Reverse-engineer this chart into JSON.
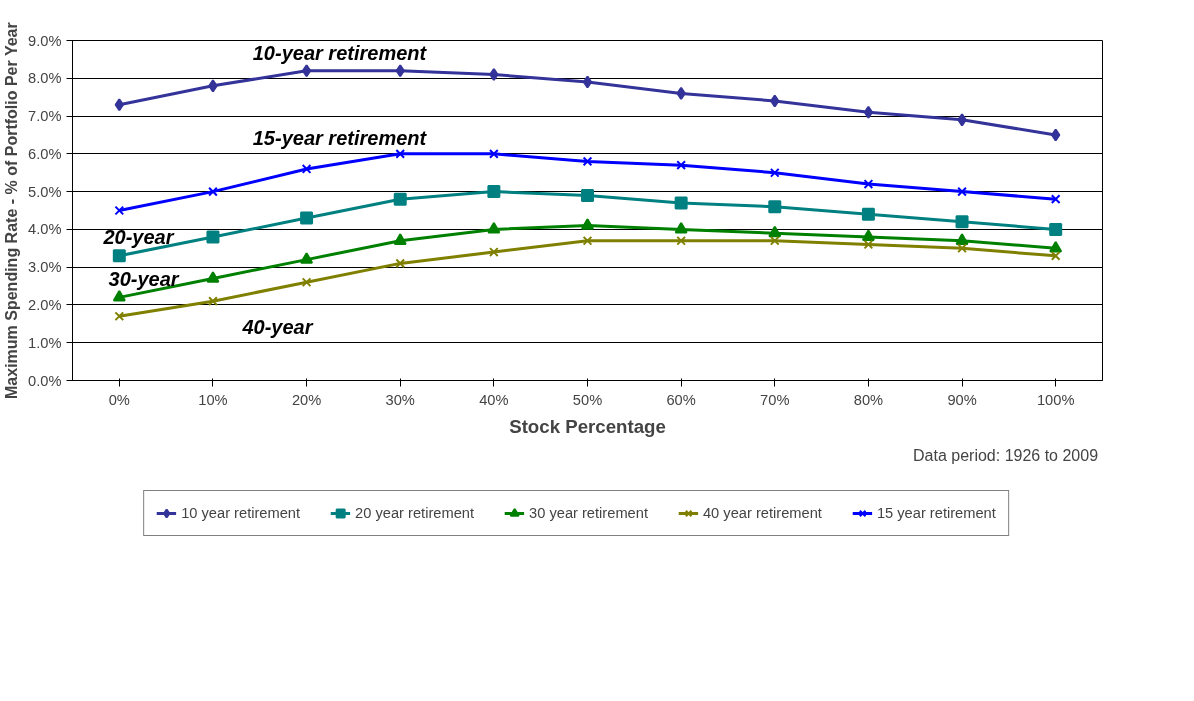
{
  "chart_data": {
    "type": "line",
    "xlabel": "Stock Percentage",
    "ylabel": "Maximum Spending Rate - % of Portfolio Per Year",
    "categories": [
      "0%",
      "10%",
      "20%",
      "30%",
      "40%",
      "50%",
      "60%",
      "70%",
      "80%",
      "90%",
      "100%"
    ],
    "ylim": [
      0,
      9
    ],
    "yticks": [
      {
        "value": 0,
        "label": "0.0%"
      },
      {
        "value": 1,
        "label": "1.0%"
      },
      {
        "value": 2,
        "label": "2.0%"
      },
      {
        "value": 3,
        "label": "3.0%"
      },
      {
        "value": 4,
        "label": "4.0%"
      },
      {
        "value": 5,
        "label": "5.0%"
      },
      {
        "value": 6,
        "label": "6.0%"
      },
      {
        "value": 7,
        "label": "7.0%"
      },
      {
        "value": 8,
        "label": "8.0%"
      },
      {
        "value": 9,
        "label": "9.0%"
      }
    ],
    "grid": "y",
    "legend": "bottom",
    "series": [
      {
        "name": "10 year retirement",
        "color": "#333399",
        "marker": "diamond",
        "values": [
          7.3,
          7.8,
          8.2,
          8.2,
          8.1,
          7.9,
          7.6,
          7.4,
          7.1,
          6.9,
          6.5
        ]
      },
      {
        "name": "20 year retirement",
        "color": "#008080",
        "marker": "square",
        "values": [
          3.3,
          3.8,
          4.3,
          4.8,
          5.0,
          4.9,
          4.7,
          4.6,
          4.4,
          4.2,
          4.0
        ]
      },
      {
        "name": "30 year retirement",
        "color": "#008000",
        "marker": "triangle",
        "values": [
          2.2,
          2.7,
          3.2,
          3.7,
          4.0,
          4.1,
          4.0,
          3.9,
          3.8,
          3.7,
          3.5
        ]
      },
      {
        "name": "40 year retirement",
        "color": "#808000",
        "marker": "cross",
        "values": [
          1.7,
          2.1,
          2.6,
          3.1,
          3.4,
          3.7,
          3.7,
          3.7,
          3.6,
          3.5,
          3.3
        ]
      },
      {
        "name": "15 year retirement",
        "color": "#0000ff",
        "marker": "cross",
        "values": [
          4.5,
          5.0,
          5.6,
          6.0,
          6.0,
          5.8,
          5.7,
          5.5,
          5.2,
          5.0,
          4.8
        ]
      }
    ],
    "annotations": [
      "10-year retirement",
      "15-year retirement",
      "20-year",
      "30-year",
      "40-year",
      "Data period:  1926 to 2009"
    ]
  }
}
